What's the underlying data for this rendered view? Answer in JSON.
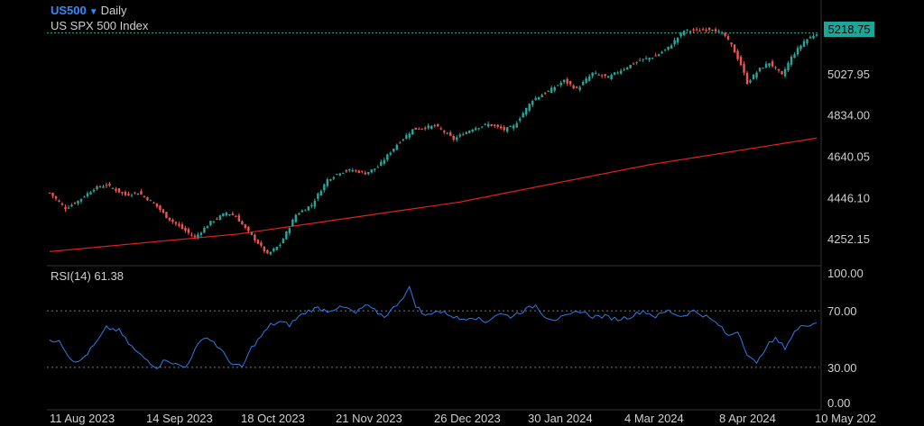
{
  "header": {
    "symbol": "US500",
    "timeframe": "Daily",
    "name": "US SPX 500 Index"
  },
  "price_badge": "5218.75",
  "rsi_header": {
    "label": "RSI(14)",
    "value": "61.38"
  },
  "colors": {
    "up": "#26a69a",
    "down": "#ef5350",
    "ma": "#e02020",
    "rsi": "#2f7be8",
    "badge": "#1aa79a",
    "grid": "#333333"
  },
  "chart_data": [
    {
      "type": "candlestick",
      "x_tick_labels": [
        "11 Aug 2023",
        "14 Sep 2023",
        "18 Oct 2023",
        "21 Nov 2023",
        "26 Dec 2023",
        "30 Jan 2024",
        "4 Mar 2024",
        "8 Apr 2024",
        "10 May 202"
      ],
      "y_tick_labels": [
        "5027.95",
        "4834.00",
        "4640.05",
        "4446.10",
        "4252.15"
      ],
      "ylim": [
        4130,
        5340
      ],
      "last_price": 5218.75,
      "close_path": [
        [
          0,
          4468
        ],
        [
          5,
          4395
        ],
        [
          9,
          4430
        ],
        [
          14,
          4488
        ],
        [
          18,
          4505
        ],
        [
          24,
          4458
        ],
        [
          28,
          4470
        ],
        [
          33,
          4420
        ],
        [
          37,
          4355
        ],
        [
          42,
          4300
        ],
        [
          46,
          4258
        ],
        [
          51,
          4330
        ],
        [
          56,
          4375
        ],
        [
          59,
          4358
        ],
        [
          62,
          4300
        ],
        [
          65,
          4250
        ],
        [
          69,
          4178
        ],
        [
          73,
          4225
        ],
        [
          78,
          4365
        ],
        [
          83,
          4412
        ],
        [
          88,
          4530
        ],
        [
          92,
          4565
        ],
        [
          96,
          4575
        ],
        [
          100,
          4560
        ],
        [
          104,
          4590
        ],
        [
          110,
          4695
        ],
        [
          115,
          4765
        ],
        [
          119,
          4775
        ],
        [
          122,
          4783
        ],
        [
          125,
          4755
        ],
        [
          128,
          4720
        ],
        [
          134,
          4770
        ],
        [
          139,
          4790
        ],
        [
          144,
          4765
        ],
        [
          147,
          4780
        ],
        [
          153,
          4905
        ],
        [
          158,
          4945
        ],
        [
          163,
          4995
        ],
        [
          167,
          4955
        ],
        [
          172,
          5030
        ],
        [
          177,
          5010
        ],
        [
          181,
          5045
        ],
        [
          187,
          5090
        ],
        [
          192,
          5110
        ],
        [
          196,
          5150
        ],
        [
          201,
          5230
        ],
        [
          206,
          5230
        ],
        [
          210,
          5240
        ],
        [
          214,
          5205
        ],
        [
          216,
          5160
        ],
        [
          219,
          5070
        ],
        [
          221,
          4985
        ],
        [
          225,
          5050
        ],
        [
          228,
          5080
        ],
        [
          232,
          5020
        ],
        [
          235,
          5105
        ],
        [
          239,
          5180
        ],
        [
          243,
          5218.75
        ]
      ],
      "ma_path": [
        [
          0,
          4192
        ],
        [
          60,
          4275
        ],
        [
          130,
          4425
        ],
        [
          190,
          4600
        ],
        [
          243,
          4725
        ]
      ]
    },
    {
      "type": "line",
      "series": [
        {
          "name": "RSI(14)",
          "last": 61.38
        }
      ],
      "y_tick_labels": [
        "100.00",
        "70.00",
        "30.00",
        "0.00"
      ],
      "ylim": [
        0,
        100
      ],
      "reference_lines": [
        70,
        30
      ],
      "rsi_path": [
        [
          0,
          48
        ],
        [
          3,
          50
        ],
        [
          6,
          38
        ],
        [
          9,
          33
        ],
        [
          12,
          40
        ],
        [
          15,
          48
        ],
        [
          18,
          58
        ],
        [
          22,
          56
        ],
        [
          25,
          47
        ],
        [
          28,
          40
        ],
        [
          31,
          35
        ],
        [
          34,
          30
        ],
        [
          37,
          36
        ],
        [
          40,
          32
        ],
        [
          43,
          30
        ],
        [
          46,
          42
        ],
        [
          49,
          52
        ],
        [
          52,
          48
        ],
        [
          55,
          40
        ],
        [
          58,
          32
        ],
        [
          61,
          30
        ],
        [
          64,
          44
        ],
        [
          67,
          52
        ],
        [
          70,
          60
        ],
        [
          73,
          62
        ],
        [
          76,
          60
        ],
        [
          79,
          66
        ],
        [
          82,
          70
        ],
        [
          85,
          72
        ],
        [
          88,
          70
        ],
        [
          91,
          72
        ],
        [
          94,
          72
        ],
        [
          97,
          68
        ],
        [
          100,
          74
        ],
        [
          103,
          70
        ],
        [
          106,
          66
        ],
        [
          109,
          72
        ],
        [
          112,
          80
        ],
        [
          114,
          86
        ],
        [
          116,
          74
        ],
        [
          119,
          66
        ],
        [
          122,
          70
        ],
        [
          126,
          68
        ],
        [
          130,
          64
        ],
        [
          134,
          66
        ],
        [
          138,
          62
        ],
        [
          142,
          68
        ],
        [
          146,
          66
        ],
        [
          150,
          70
        ],
        [
          154,
          74
        ],
        [
          157,
          66
        ],
        [
          160,
          64
        ],
        [
          164,
          66
        ],
        [
          168,
          70
        ],
        [
          172,
          66
        ],
        [
          176,
          66
        ],
        [
          180,
          64
        ],
        [
          184,
          66
        ],
        [
          188,
          70
        ],
        [
          192,
          66
        ],
        [
          196,
          70
        ],
        [
          200,
          66
        ],
        [
          204,
          70
        ],
        [
          208,
          66
        ],
        [
          212,
          60
        ],
        [
          215,
          52
        ],
        [
          218,
          56
        ],
        [
          221,
          40
        ],
        [
          224,
          32
        ],
        [
          227,
          45
        ],
        [
          230,
          50
        ],
        [
          233,
          44
        ],
        [
          236,
          55
        ],
        [
          239,
          60
        ],
        [
          243,
          61.38
        ]
      ]
    }
  ]
}
